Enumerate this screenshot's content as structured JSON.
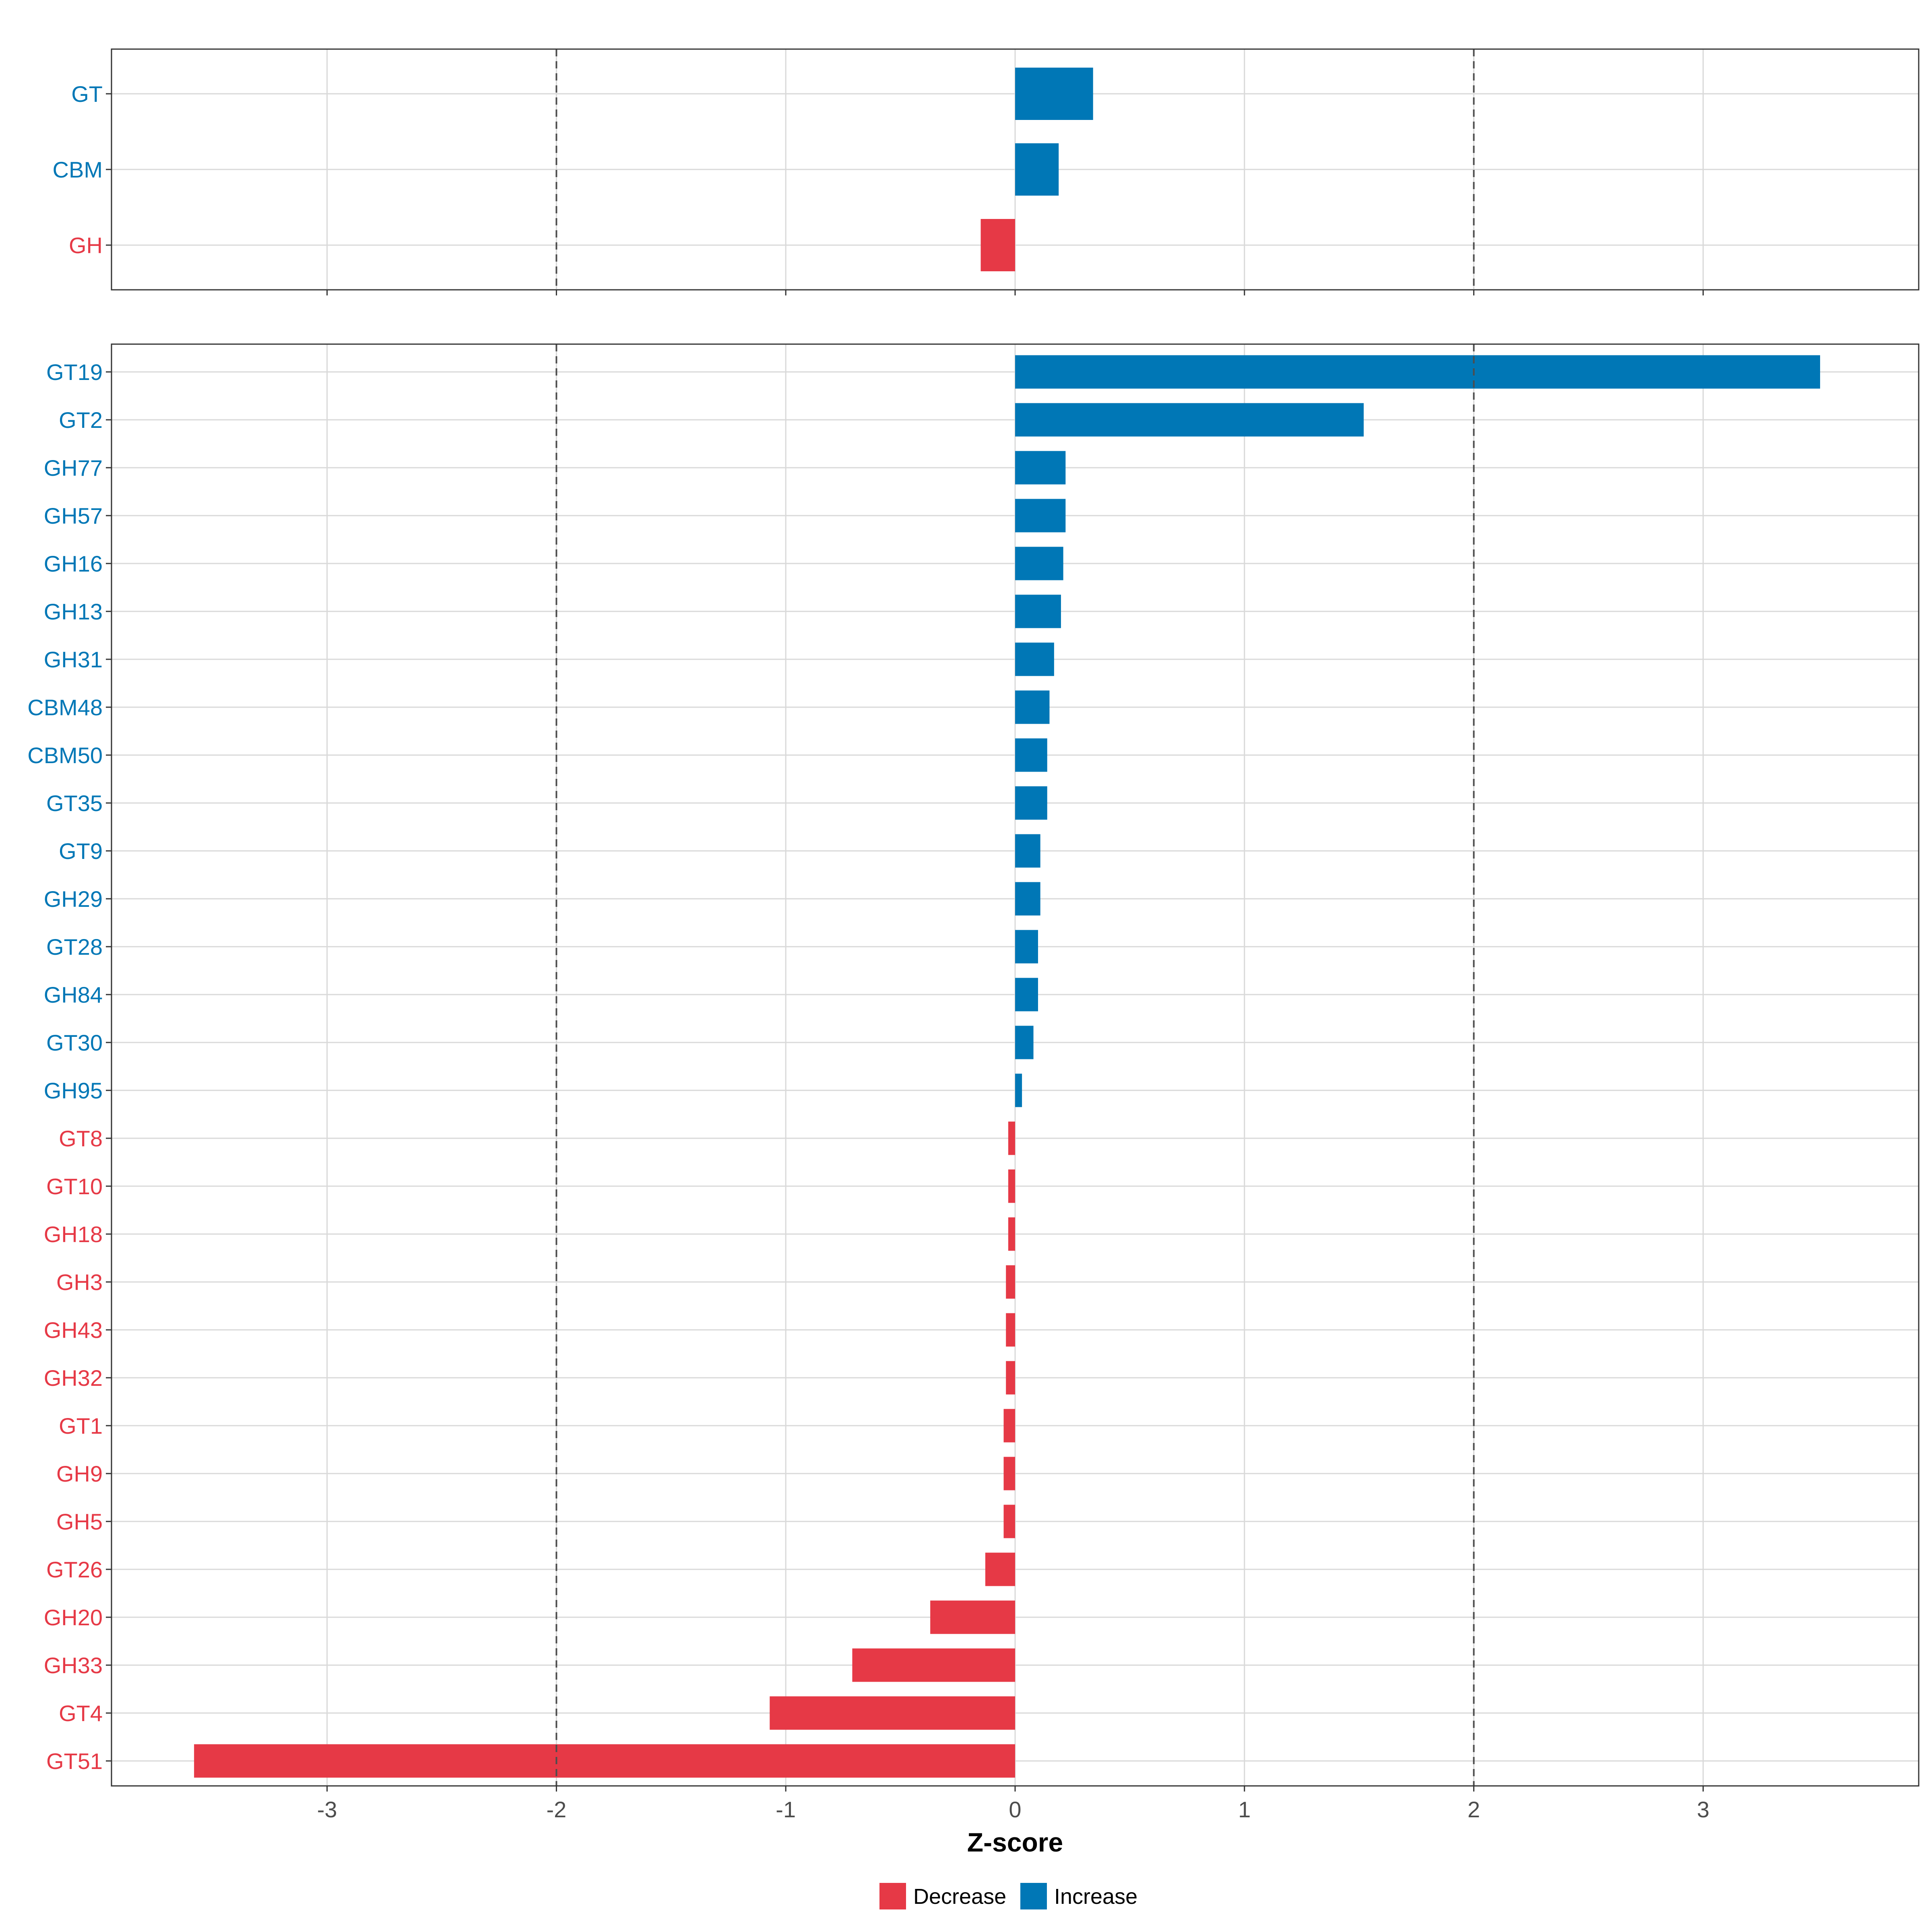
{
  "chart_data": {
    "type": "bar",
    "orientation": "horizontal",
    "xlabel": "Z-score",
    "xlim": [
      -3.94,
      3.94
    ],
    "x_ticks": [
      -3,
      -2,
      -1,
      0,
      1,
      2,
      3
    ],
    "x_tick_labels": [
      "-3",
      "-2",
      "-1",
      "0",
      "1",
      "2",
      "3"
    ],
    "reference_lines": [
      -2,
      2
    ],
    "grid": true,
    "colors": {
      "Decrease": "#E63946",
      "Increase": "#0077B6",
      "gridline": "#d9d9d9",
      "refline": "#4d4d4d",
      "frame": "#333333"
    },
    "panels": [
      {
        "categories": [
          "GT",
          "CBM",
          "GH"
        ],
        "values": [
          0.34,
          0.19,
          -0.15
        ],
        "direction": [
          "Increase",
          "Increase",
          "Decrease"
        ]
      },
      {
        "categories": [
          "GT19",
          "GT2",
          "GH77",
          "GH57",
          "GH16",
          "GH13",
          "GH31",
          "CBM48",
          "CBM50",
          "GT35",
          "GT9",
          "GH29",
          "GT28",
          "GH84",
          "GT30",
          "GH95",
          "GT8",
          "GT10",
          "GH18",
          "GH3",
          "GH43",
          "GH32",
          "GT1",
          "GH9",
          "GH5",
          "GT26",
          "GH20",
          "GH33",
          "GT4",
          "GT51"
        ],
        "values": [
          3.51,
          1.52,
          0.22,
          0.22,
          0.21,
          0.2,
          0.17,
          0.15,
          0.14,
          0.14,
          0.11,
          0.11,
          0.1,
          0.1,
          0.08,
          0.03,
          -0.03,
          -0.03,
          -0.03,
          -0.04,
          -0.04,
          -0.04,
          -0.05,
          -0.05,
          -0.05,
          -0.13,
          -0.37,
          -0.71,
          -1.07,
          -3.58
        ],
        "direction": [
          "Increase",
          "Increase",
          "Increase",
          "Increase",
          "Increase",
          "Increase",
          "Increase",
          "Increase",
          "Increase",
          "Increase",
          "Increase",
          "Increase",
          "Increase",
          "Increase",
          "Increase",
          "Increase",
          "Decrease",
          "Decrease",
          "Decrease",
          "Decrease",
          "Decrease",
          "Decrease",
          "Decrease",
          "Decrease",
          "Decrease",
          "Decrease",
          "Decrease",
          "Decrease",
          "Decrease",
          "Decrease"
        ]
      }
    ],
    "legend": {
      "position": "bottom",
      "entries": [
        "Decrease",
        "Increase"
      ]
    }
  }
}
